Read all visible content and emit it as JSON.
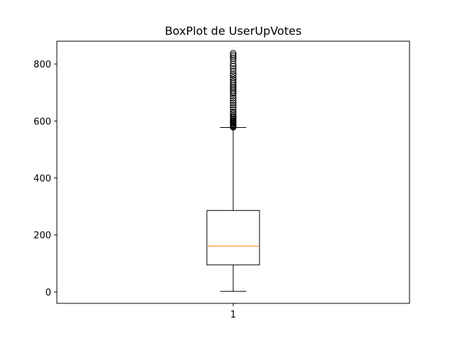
{
  "chart_data": {
    "type": "boxplot",
    "title": "BoxPlot de UserUpVotes",
    "xlabel": "",
    "ylabel": "",
    "categories": [
      "1"
    ],
    "ylim": [
      -40,
      880
    ],
    "yticks": [
      0,
      200,
      400,
      600,
      800
    ],
    "grid": false,
    "series": [
      {
        "category": "1",
        "min": 2,
        "q1": 95,
        "median": 161,
        "q3": 286,
        "whisker_low": 2,
        "whisker_high": 577,
        "outliers": [
          578,
          580,
          582,
          585,
          588,
          591,
          594,
          597,
          600,
          604,
          608,
          612,
          616,
          620,
          626,
          632,
          640,
          648,
          656,
          664,
          672,
          680,
          688,
          696,
          702,
          708,
          714,
          720,
          726,
          732,
          738,
          745,
          752,
          760,
          766,
          775,
          784,
          792,
          800,
          812,
          820,
          826,
          832,
          838
        ],
        "box_color": "#000000",
        "median_color": "#ff7f0e"
      }
    ]
  }
}
